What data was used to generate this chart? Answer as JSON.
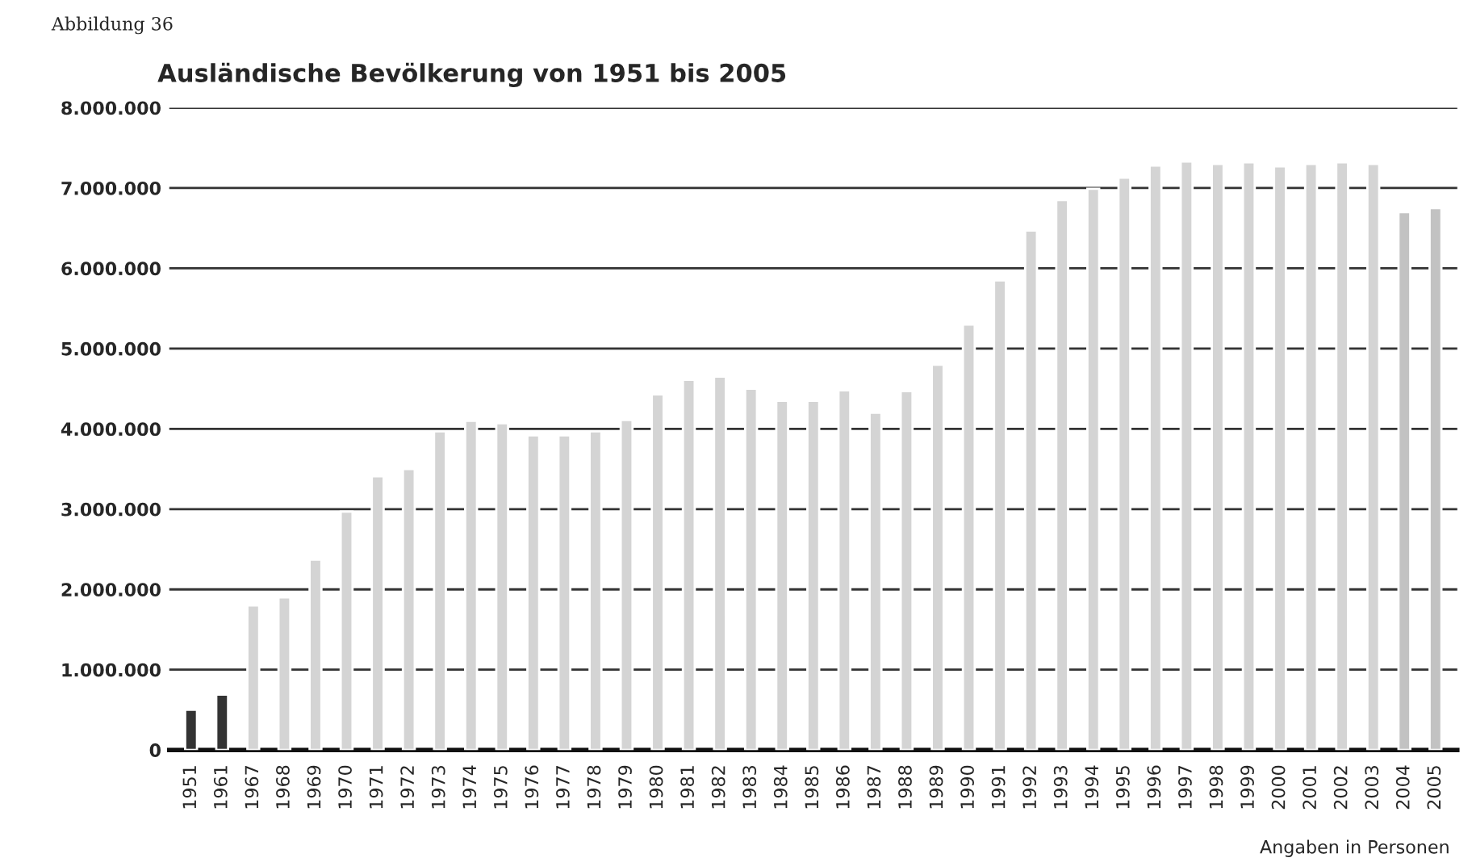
{
  "chart_data": {
    "type": "bar",
    "title": "Ausländische Bevölkerung von 1951 bis 2005",
    "annotations": [
      "Abbildung 36",
      "Angaben in Personen"
    ],
    "categories": [
      "1951",
      "1961",
      "1967",
      "1968",
      "1969",
      "1970",
      "1971",
      "1972",
      "1973",
      "1974",
      "1975",
      "1976",
      "1977",
      "1978",
      "1979",
      "1980",
      "1981",
      "1982",
      "1983",
      "1984",
      "1985",
      "1986",
      "1987",
      "1988",
      "1989",
      "1990",
      "1991",
      "1992",
      "1993",
      "1994",
      "1995",
      "1996",
      "1997",
      "1998",
      "1999",
      "2000",
      "2001",
      "2002",
      "2003",
      "2004",
      "2005"
    ],
    "values": [
      500000,
      690000,
      1800000,
      1900000,
      2370000,
      2970000,
      3410000,
      3500000,
      3970000,
      4100000,
      4070000,
      3920000,
      3920000,
      3970000,
      4110000,
      4430000,
      4610000,
      4650000,
      4500000,
      4350000,
      4350000,
      4480000,
      4200000,
      4470000,
      4800000,
      5300000,
      5850000,
      6470000,
      6850000,
      6990000,
      7130000,
      7280000,
      7330000,
      7300000,
      7320000,
      7270000,
      7300000,
      7320000,
      7300000,
      6700000,
      6750000
    ],
    "colors": [
      "#333333",
      "#333333",
      "#d4d4d4",
      "#d4d4d4",
      "#d4d4d4",
      "#d4d4d4",
      "#d4d4d4",
      "#d4d4d4",
      "#d4d4d4",
      "#d4d4d4",
      "#d4d4d4",
      "#d4d4d4",
      "#d4d4d4",
      "#d4d4d4",
      "#d4d4d4",
      "#d4d4d4",
      "#d4d4d4",
      "#d4d4d4",
      "#d4d4d4",
      "#d4d4d4",
      "#d4d4d4",
      "#d4d4d4",
      "#d4d4d4",
      "#d4d4d4",
      "#d4d4d4",
      "#d4d4d4",
      "#d4d4d4",
      "#d4d4d4",
      "#d4d4d4",
      "#d4d4d4",
      "#d4d4d4",
      "#d4d4d4",
      "#d4d4d4",
      "#d4d4d4",
      "#d4d4d4",
      "#d4d4d4",
      "#d4d4d4",
      "#d4d4d4",
      "#d4d4d4",
      "#c2c2c2",
      "#c2c2c2"
    ],
    "ylim": [
      0,
      8000000
    ],
    "yticks": [
      0,
      {
        "value": 1000000,
        "label": "1.000.000"
      },
      {
        "value": 2000000,
        "label": "2.000.000"
      },
      {
        "value": 3000000,
        "label": "3.000.000"
      },
      {
        "value": 4000000,
        "label": "4.000.000"
      },
      {
        "value": 5000000,
        "label": "5.000.000"
      },
      {
        "value": 6000000,
        "label": "6.000.000"
      },
      {
        "value": 7000000,
        "label": "7.000.000"
      },
      {
        "value": 8000000,
        "label": "8.000.000"
      }
    ],
    "grid": "y",
    "legend": false
  }
}
